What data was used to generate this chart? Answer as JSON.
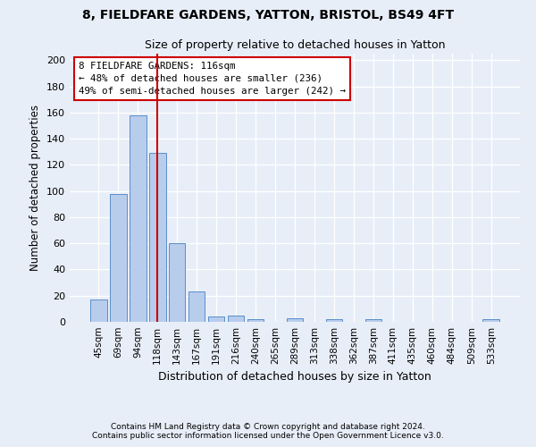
{
  "title1": "8, FIELDFARE GARDENS, YATTON, BRISTOL, BS49 4FT",
  "title2": "Size of property relative to detached houses in Yatton",
  "xlabel": "Distribution of detached houses by size in Yatton",
  "ylabel": "Number of detached properties",
  "categories": [
    "45sqm",
    "69sqm",
    "94sqm",
    "118sqm",
    "143sqm",
    "167sqm",
    "191sqm",
    "216sqm",
    "240sqm",
    "265sqm",
    "289sqm",
    "313sqm",
    "338sqm",
    "362sqm",
    "387sqm",
    "411sqm",
    "435sqm",
    "460sqm",
    "484sqm",
    "509sqm",
    "533sqm"
  ],
  "values": [
    17,
    98,
    158,
    129,
    60,
    23,
    4,
    5,
    2,
    0,
    3,
    0,
    2,
    0,
    2,
    0,
    0,
    0,
    0,
    0,
    2
  ],
  "bar_color": "#b8ccec",
  "bar_edge_color": "#5a8fc8",
  "vline_x_index": 3,
  "vline_color": "#cc0000",
  "annotation_text": "8 FIELDFARE GARDENS: 116sqm\n← 48% of detached houses are smaller (236)\n49% of semi-detached houses are larger (242) →",
  "annotation_box_color": "#ffffff",
  "annotation_box_edge": "#cc0000",
  "ylim": [
    0,
    205
  ],
  "yticks": [
    0,
    20,
    40,
    60,
    80,
    100,
    120,
    140,
    160,
    180,
    200
  ],
  "footer1": "Contains HM Land Registry data © Crown copyright and database right 2024.",
  "footer2": "Contains public sector information licensed under the Open Government Licence v3.0.",
  "bg_color": "#e8eef8",
  "plot_bg_color": "#e8eef8"
}
